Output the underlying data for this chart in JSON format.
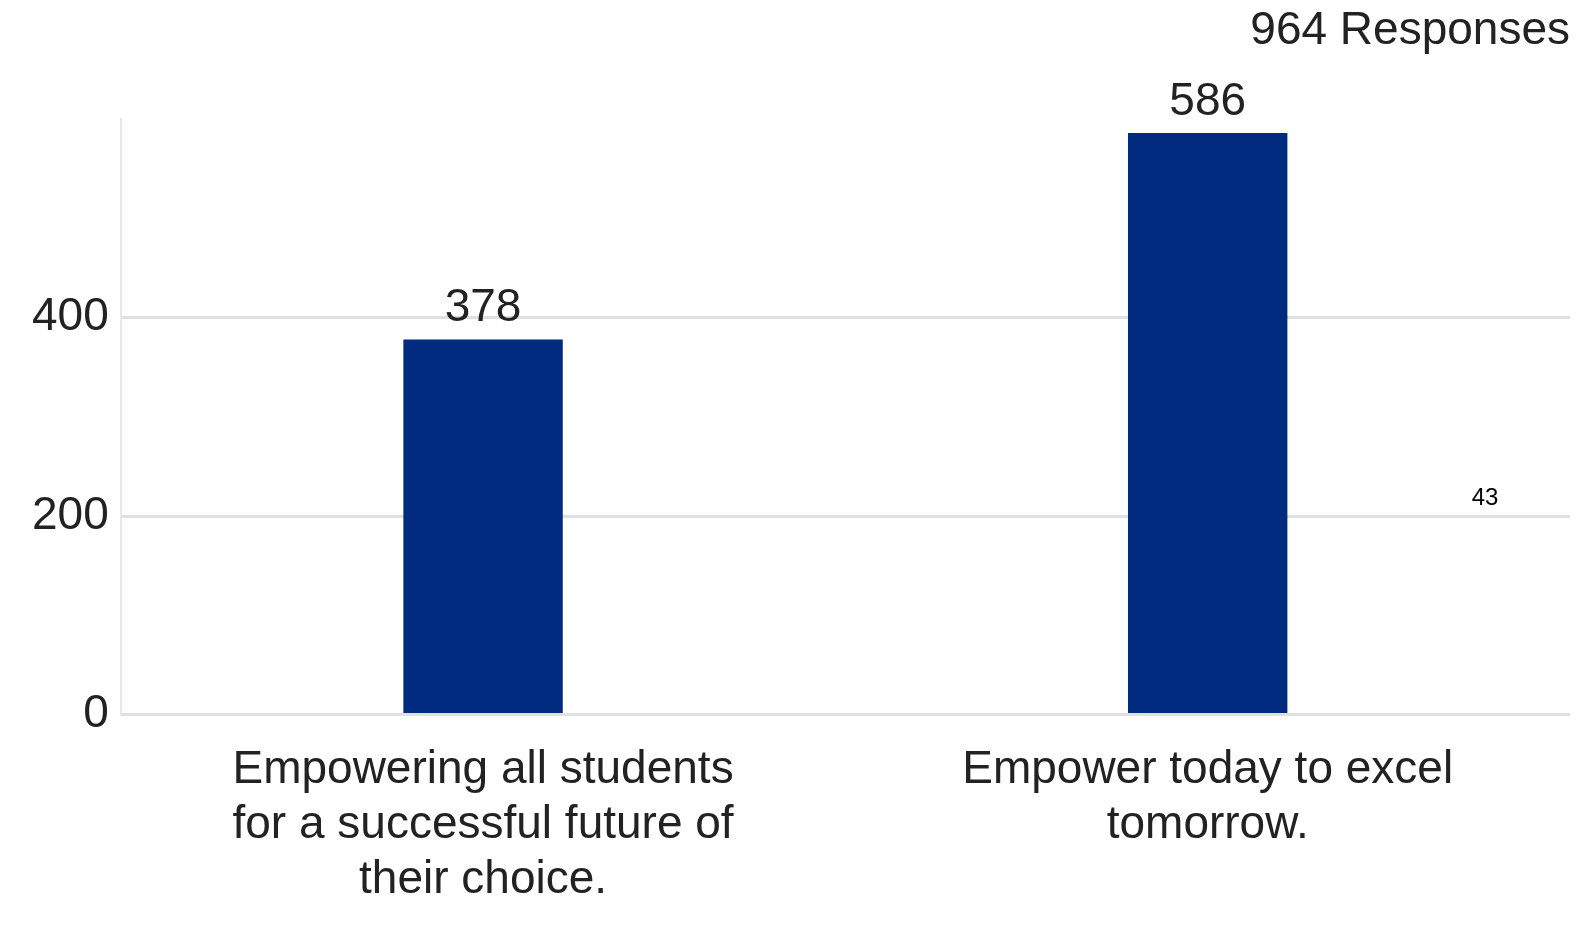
{
  "chart_data": {
    "type": "bar",
    "title": "964 Responses",
    "categories": [
      "Empowering all students for a successful future of their choice.",
      "Empower today to excel tomorrow."
    ],
    "values": [
      378,
      586
    ],
    "color": "#002b7f",
    "ylim": [
      0,
      600
    ],
    "yticks": [
      0,
      200,
      400
    ],
    "grid": "y",
    "data_labels": true,
    "legend": false,
    "annotations": [
      "43"
    ]
  }
}
